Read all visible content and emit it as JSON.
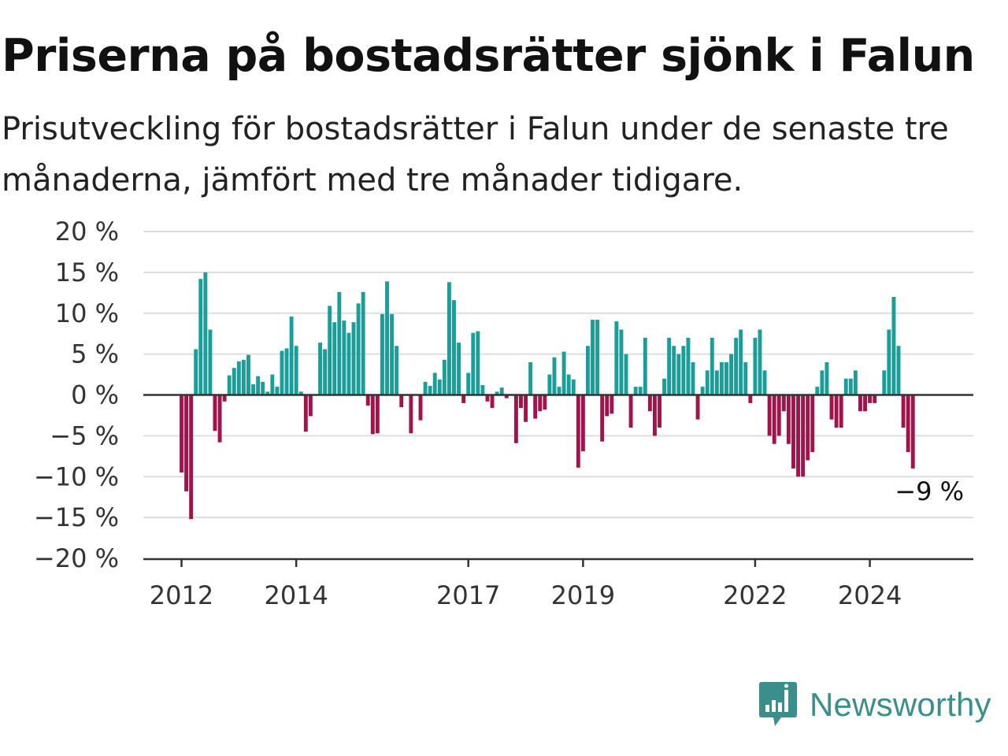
{
  "header": {
    "title": "Priserna på bostadsrätter sjönk i Falun",
    "subtitle": "Prisutveckling för bostadsrätter i Falun under de senaste tre månaderna, jämfört med tre månader tidigare."
  },
  "brand": {
    "name": "Newsworthy",
    "logo_icon": "bar-chart-speech-bubble-icon"
  },
  "colors": {
    "positive": "#1a9e99",
    "negative": "#a3124a",
    "grid": "#dddddd",
    "axis": "#333333",
    "brand": "#3a8f8a"
  },
  "chart_data": {
    "type": "bar",
    "title": "Priserna på bostadsrätter sjönk i Falun",
    "subtitle": "Prisutveckling för bostadsrätter i Falun under de senaste tre månaderna, jämfört med tre månader tidigare.",
    "xlabel": "",
    "ylabel": "",
    "ylim": [
      -20,
      20
    ],
    "yticks": [
      {
        "value": 20,
        "label": "20 %"
      },
      {
        "value": 15,
        "label": "15 %"
      },
      {
        "value": 10,
        "label": "10 %"
      },
      {
        "value": 5,
        "label": "5 %"
      },
      {
        "value": 0,
        "label": "0 %"
      },
      {
        "value": -5,
        "label": "−5 %"
      },
      {
        "value": -10,
        "label": "−10 %"
      },
      {
        "value": -15,
        "label": "−15 %"
      },
      {
        "value": -20,
        "label": "−20 %"
      }
    ],
    "xticks": [
      {
        "year": 2012,
        "label": "2012"
      },
      {
        "year": 2014,
        "label": "2014"
      },
      {
        "year": 2017,
        "label": "2017"
      },
      {
        "year": 2019,
        "label": "2019"
      },
      {
        "year": 2022,
        "label": "2022"
      },
      {
        "year": 2024,
        "label": "2024"
      }
    ],
    "start": "2012-01",
    "grid": true,
    "annotation": {
      "text": "−9 %",
      "target": "last"
    },
    "values": [
      -9.5,
      -11.8,
      -15.2,
      5.6,
      14.2,
      15.0,
      8.0,
      -4.4,
      -5.8,
      -0.8,
      2.4,
      3.3,
      4.1,
      4.3,
      4.9,
      1.3,
      2.3,
      1.6,
      0.4,
      2.5,
      1.0,
      5.4,
      5.7,
      9.6,
      6.0,
      0.4,
      -4.5,
      -2.6,
      0.0,
      6.4,
      5.6,
      10.9,
      8.9,
      12.6,
      9.1,
      7.6,
      8.9,
      11.2,
      12.6,
      -1.3,
      -4.8,
      -4.7,
      9.9,
      13.9,
      9.9,
      6.0,
      -1.5,
      0.0,
      -4.7,
      0.0,
      -3.1,
      1.6,
      1.1,
      2.7,
      1.9,
      4.3,
      13.8,
      11.6,
      6.4,
      -1.0,
      2.7,
      7.6,
      7.8,
      1.2,
      -0.8,
      -1.6,
      0.4,
      0.9,
      -0.4,
      0.0,
      -5.9,
      -1.6,
      -3.3,
      4.0,
      -2.9,
      -2.0,
      -1.8,
      2.5,
      4.6,
      1.0,
      5.3,
      2.5,
      1.9,
      -8.9,
      -6.9,
      6.0,
      9.2,
      9.2,
      -5.7,
      -2.6,
      -2.3,
      9.0,
      8.0,
      5.0,
      -4.0,
      1.0,
      1.0,
      7.0,
      -2.0,
      -5.0,
      -4.0,
      2.0,
      7.0,
      6.0,
      5.0,
      6.0,
      7.0,
      4.0,
      -3.0,
      1.0,
      3.0,
      7.0,
      3.0,
      4.0,
      4.0,
      5.0,
      7.0,
      8.0,
      4.0,
      -1.0,
      7.0,
      8.0,
      3.0,
      -5.0,
      -6.0,
      -5.0,
      -2.0,
      -6.0,
      -9.0,
      -10.0,
      -10.0,
      -8.0,
      -7.0,
      1.0,
      3.0,
      4.0,
      -3.0,
      -4.0,
      -4.0,
      2.0,
      2.0,
      3.0,
      -2.0,
      -2.0,
      -1.0,
      -1.0,
      0.0,
      3.0,
      8.0,
      12.0,
      6.0,
      -4.0,
      -7.0,
      -9.0
    ]
  }
}
